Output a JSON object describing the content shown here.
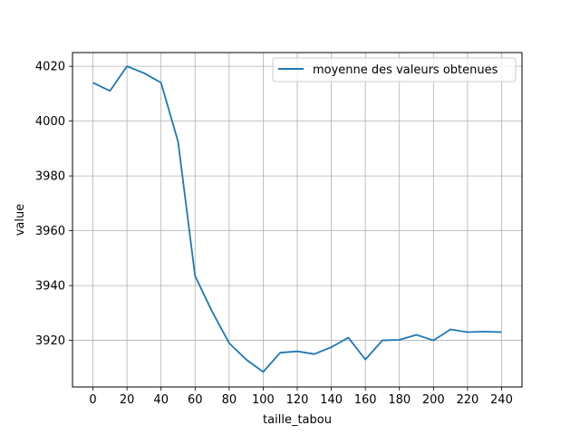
{
  "chart_data": {
    "type": "line",
    "xlabel": "taille_tabou",
    "ylabel": "value",
    "xlim": [
      -12,
      252
    ],
    "ylim": [
      3903,
      4025
    ],
    "xticks": [
      0,
      20,
      40,
      60,
      80,
      100,
      120,
      140,
      160,
      180,
      200,
      220,
      240
    ],
    "yticks": [
      3920,
      3940,
      3960,
      3980,
      4000,
      4020
    ],
    "grid": true,
    "legend_position": "top-right",
    "series": [
      {
        "name": "moyenne des valeurs obtenues",
        "color": "#1f77b4",
        "x": [
          0,
          10,
          20,
          30,
          40,
          50,
          60,
          70,
          80,
          90,
          100,
          110,
          120,
          130,
          140,
          150,
          160,
          170,
          180,
          190,
          200,
          210,
          220,
          230,
          240
        ],
        "y": [
          4014,
          4011,
          4020,
          4017.5,
          4014,
          3992.5,
          3943.5,
          3930.5,
          3919,
          3913,
          3908.5,
          3915.5,
          3916,
          3915,
          3917.5,
          3921,
          3913,
          3920,
          3920.2,
          3922,
          3920,
          3924,
          3923,
          3923.2,
          3923
        ]
      }
    ]
  }
}
